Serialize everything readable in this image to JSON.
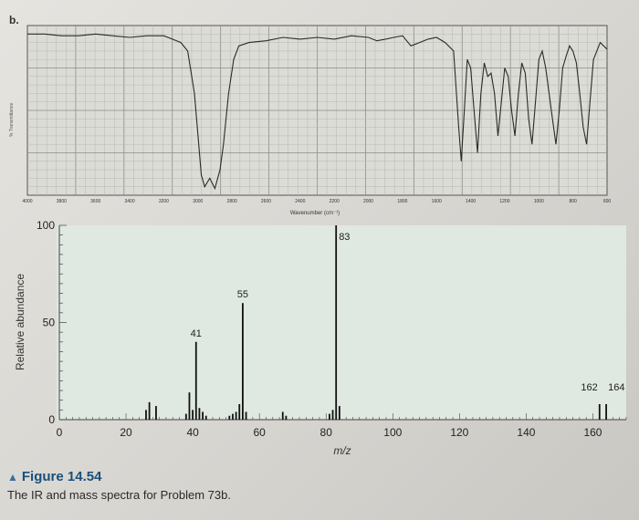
{
  "caption": {
    "figure_label": "Figure 14.54",
    "text": "The IR and mass spectra for Problem 73b."
  },
  "chart_data": [
    {
      "type": "line",
      "panel_label": "b.",
      "ylabel": "% Transmittance",
      "xlabel": "Wavenumber (cm⁻¹)",
      "xlim": [
        4000,
        600
      ],
      "x_ticks": [
        4000,
        3800,
        3600,
        3400,
        3200,
        3000,
        2800,
        2600,
        2400,
        2200,
        2000,
        1800,
        1600,
        1400,
        1200,
        1000,
        800,
        600
      ],
      "x_tick_labels": [
        "4000",
        "3800",
        "3600",
        "3400",
        "3200",
        "3000",
        "2800",
        "2600",
        "2400",
        "2200",
        "2000",
        "1800",
        "1600",
        "1400",
        "1200",
        "1000",
        "800",
        "600"
      ],
      "series": [
        {
          "x": [
            4000,
            3900,
            3800,
            3700,
            3600,
            3500,
            3400,
            3300,
            3200,
            3150,
            3100,
            3060,
            3020,
            2980,
            2960,
            2930,
            2900,
            2870,
            2850,
            2820,
            2790,
            2760,
            2700,
            2600,
            2500,
            2400,
            2300,
            2200,
            2100,
            2000,
            1950,
            1900,
            1850,
            1800,
            1750,
            1700,
            1650,
            1600,
            1550,
            1500,
            1470,
            1455,
            1440,
            1420,
            1400,
            1380,
            1360,
            1340,
            1320,
            1300,
            1280,
            1260,
            1240,
            1220,
            1200,
            1180,
            1160,
            1140,
            1120,
            1100,
            1080,
            1060,
            1040,
            1020,
            1000,
            980,
            960,
            940,
            920,
            900,
            880,
            860,
            840,
            820,
            800,
            780,
            760,
            740,
            720,
            700,
            680,
            660,
            640,
            620,
            600
          ],
          "y": [
            95,
            95,
            94,
            94,
            95,
            94,
            93,
            94,
            94,
            92,
            90,
            85,
            60,
            12,
            5,
            10,
            4,
            15,
            30,
            60,
            80,
            88,
            90,
            91,
            93,
            92,
            93,
            92,
            94,
            93,
            91,
            92,
            93,
            94,
            88,
            90,
            92,
            93,
            90,
            85,
            40,
            20,
            45,
            80,
            75,
            50,
            25,
            60,
            78,
            70,
            72,
            60,
            35,
            55,
            75,
            70,
            50,
            35,
            60,
            78,
            72,
            45,
            30,
            55,
            80,
            85,
            75,
            60,
            45,
            30,
            50,
            75,
            82,
            88,
            85,
            78,
            60,
            40,
            30,
            55,
            80,
            85,
            90,
            88,
            86
          ]
        }
      ]
    },
    {
      "type": "bar",
      "ylabel": "Relative abundance",
      "xlabel": "m/z",
      "xlim": [
        0,
        170
      ],
      "ylim": [
        0,
        100
      ],
      "x_ticks": [
        0,
        20,
        40,
        60,
        80,
        100,
        120,
        140,
        160
      ],
      "y_ticks": [
        0,
        50,
        100
      ],
      "peaks": [
        {
          "mz": 26,
          "abundance": 5
        },
        {
          "mz": 27,
          "abundance": 9
        },
        {
          "mz": 29,
          "abundance": 7
        },
        {
          "mz": 38,
          "abundance": 3
        },
        {
          "mz": 39,
          "abundance": 14
        },
        {
          "mz": 40,
          "abundance": 5
        },
        {
          "mz": 41,
          "abundance": 40
        },
        {
          "mz": 42,
          "abundance": 6
        },
        {
          "mz": 43,
          "abundance": 4
        },
        {
          "mz": 44,
          "abundance": 2
        },
        {
          "mz": 51,
          "abundance": 2
        },
        {
          "mz": 52,
          "abundance": 3
        },
        {
          "mz": 53,
          "abundance": 4
        },
        {
          "mz": 54,
          "abundance": 8
        },
        {
          "mz": 55,
          "abundance": 60
        },
        {
          "mz": 56,
          "abundance": 4
        },
        {
          "mz": 67,
          "abundance": 4
        },
        {
          "mz": 68,
          "abundance": 2
        },
        {
          "mz": 81,
          "abundance": 3
        },
        {
          "mz": 82,
          "abundance": 5
        },
        {
          "mz": 83,
          "abundance": 100
        },
        {
          "mz": 84,
          "abundance": 7
        },
        {
          "mz": 162,
          "abundance": 8
        },
        {
          "mz": 164,
          "abundance": 8
        }
      ],
      "annotations": [
        {
          "mz": 41,
          "text": "41"
        },
        {
          "mz": 55,
          "text": "55"
        },
        {
          "mz": 83,
          "text": "83"
        },
        {
          "mz": 162,
          "text": "162"
        },
        {
          "mz": 164,
          "text": "164"
        }
      ]
    }
  ]
}
